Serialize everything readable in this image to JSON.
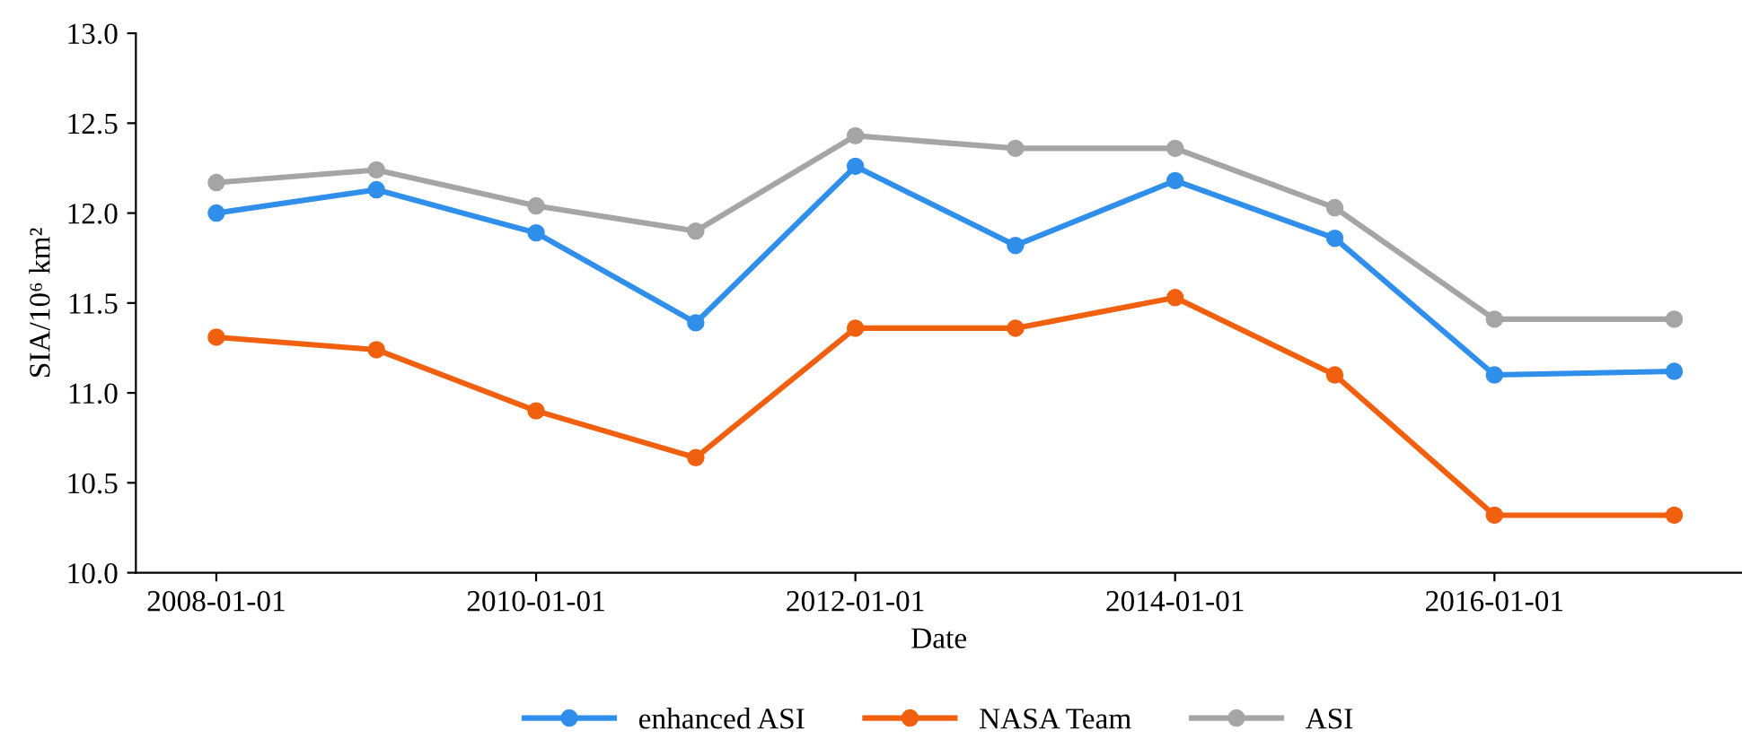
{
  "chart_data": {
    "type": "line",
    "xlabel": "Date",
    "ylabel": "SIA/10⁶ km²",
    "x": [
      "2008-01-01",
      "2009-01-01",
      "2010-01-01",
      "2011-01-01",
      "2012-01-01",
      "2013-01-01",
      "2014-01-01",
      "2015-01-01",
      "2016-01-01",
      "2017-02-15"
    ],
    "series": [
      {
        "name": "enhanced ASI",
        "color": "#2f8fea",
        "values": [
          12.0,
          12.13,
          11.89,
          11.39,
          12.26,
          11.82,
          12.18,
          11.86,
          11.1,
          11.12
        ]
      },
      {
        "name": "NASA Team",
        "color": "#f0600f",
        "values": [
          11.31,
          11.24,
          10.9,
          10.64,
          11.36,
          11.36,
          11.53,
          11.1,
          10.32,
          10.32
        ]
      },
      {
        "name": "ASI",
        "color": "#a5a5a5",
        "values": [
          12.17,
          12.24,
          12.04,
          11.9,
          12.43,
          12.36,
          12.36,
          12.03,
          11.41,
          11.41
        ]
      }
    ],
    "xlim": [
      "2007-07-01",
      "2017-07-20"
    ],
    "xticks": [
      "2008-01-01",
      "2010-01-01",
      "2012-01-01",
      "2014-01-01",
      "2016-01-01"
    ],
    "ylim": [
      10.0,
      13.0
    ],
    "yticks": [
      {
        "value": 10.0,
        "label": "10.0"
      },
      {
        "value": 10.5,
        "label": "10.5"
      },
      {
        "value": 11.0,
        "label": "11.0"
      },
      {
        "value": 11.5,
        "label": "11.5"
      },
      {
        "value": 12.0,
        "label": "12.0"
      },
      {
        "value": 12.5,
        "label": "12.5"
      },
      {
        "value": 13.0,
        "label": "13.0"
      }
    ],
    "grid": false,
    "legend": "bottom",
    "marker": "circle",
    "line_style": "solid"
  }
}
